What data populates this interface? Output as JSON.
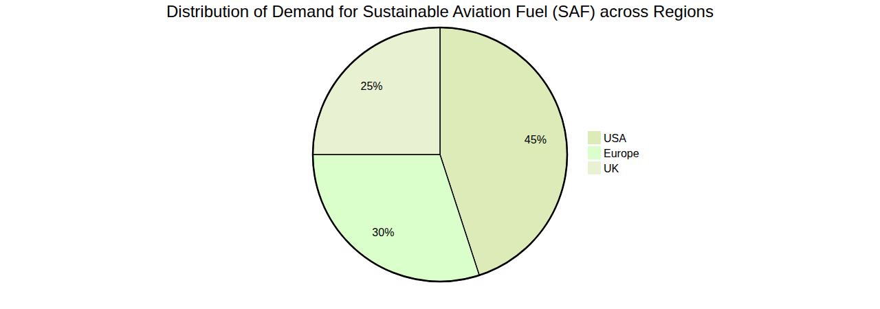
{
  "chart_data": {
    "type": "pie",
    "title": "Distribution of Demand for Sustainable Aviation Fuel (SAF) across Regions",
    "categories": [
      "USA",
      "Europe",
      "UK"
    ],
    "values": [
      45,
      30,
      25
    ],
    "value_labels": [
      "45%",
      "30%",
      "25%"
    ],
    "colors": [
      "#dcebb8",
      "#dbffcb",
      "#e8f2d3"
    ],
    "data_labels": true,
    "legend": "right"
  }
}
